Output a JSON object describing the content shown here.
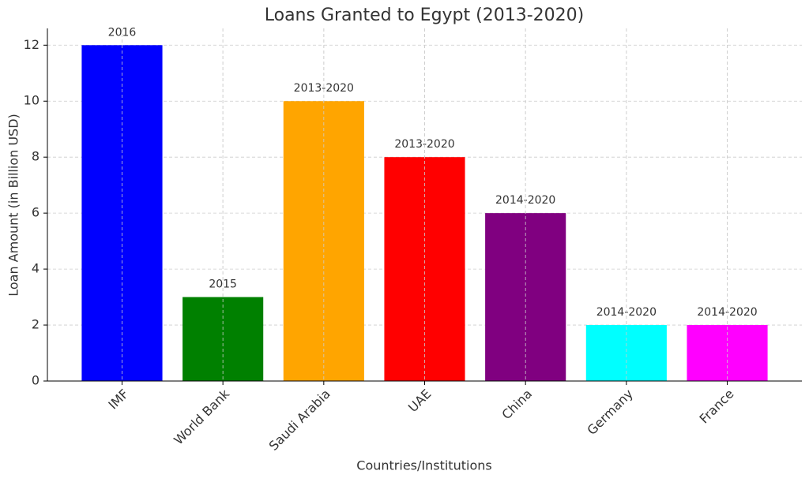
{
  "chart_data": {
    "type": "bar",
    "title": "Loans Granted to Egypt (2013-2020)",
    "x_label": "Countries/Institutions",
    "y_label": "Loan Amount (in Billion USD)",
    "categories": [
      "IMF",
      "World Bank",
      "Saudi Arabia",
      "UAE",
      "China",
      "Germany",
      "France"
    ],
    "values": [
      12,
      3,
      10,
      8,
      6,
      2,
      2
    ],
    "annotations": [
      "2016",
      "2015",
      "2013-2020",
      "2013-2020",
      "2014-2020",
      "2014-2020",
      "2014-2020"
    ],
    "colors": [
      "#0000ff",
      "#008000",
      "#ffa500",
      "#ff0000",
      "#800080",
      "#00ffff",
      "#ff00ff"
    ],
    "ylim": [
      0,
      12.6
    ],
    "yticks": [
      0,
      2,
      4,
      6,
      8,
      10,
      12
    ],
    "grid": true
  }
}
